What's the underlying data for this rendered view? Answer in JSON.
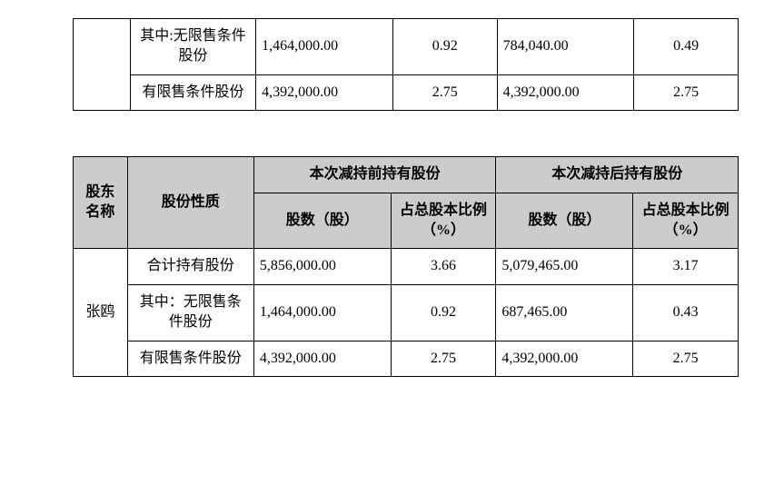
{
  "table1": {
    "rows": [
      {
        "category": "其中:无限售条件股份",
        "before_shares": "1,464,000.00",
        "before_pct": "0.92",
        "after_shares": "784,040.00",
        "after_pct": "0.49"
      },
      {
        "category": "有限售条件股份",
        "before_shares": "4,392,000.00",
        "before_pct": "2.75",
        "after_shares": "4,392,000.00",
        "after_pct": "2.75"
      }
    ]
  },
  "table2": {
    "headers": {
      "shareholder": "股东名称",
      "nature": "股份性质",
      "before": "本次减持前持有股份",
      "after": "本次减持后持有股份",
      "shares": "股数（股）",
      "pct": "占总股本比例（%）"
    },
    "shareholder_name": "张鸥",
    "rows": [
      {
        "category": "合计持有股份",
        "before_shares": "5,856,000.00",
        "before_pct": "3.66",
        "after_shares": "5,079,465.00",
        "after_pct": "3.17"
      },
      {
        "category": "其中：无限售条件股份",
        "before_shares": "1,464,000.00",
        "before_pct": "0.92",
        "after_shares": "687,465.00",
        "after_pct": "0.43"
      },
      {
        "category": "有限售条件股份",
        "before_shares": "4,392,000.00",
        "before_pct": "2.75",
        "after_shares": "4,392,000.00",
        "after_pct": "2.75"
      }
    ]
  }
}
